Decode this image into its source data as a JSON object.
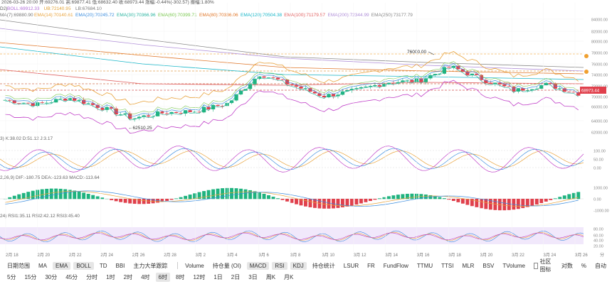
{
  "header": {
    "line1": "2026-03-26 20:00  开:69276.01  高:69877.41  低:68632.40  收:68973.44  涨幅:-0.44%(-302.57)  振幅:1.80%",
    "line2_prefix": "D2)",
    "boll": [
      "BOLL:69912.33",
      "UB:72140.95",
      "LB:67684.10"
    ],
    "ema_prefix": "MA(7):69880.90",
    "ema": [
      {
        "label": "EMA(14):70140.61",
        "color": "#e8a23a"
      },
      {
        "label": "EMA(20):70245.72",
        "color": "#3c8dde"
      },
      {
        "label": "EMA(30):70366.96",
        "color": "#2bb4a0"
      },
      {
        "label": "EMA(60):70399.71",
        "color": "#7ac74f"
      },
      {
        "label": "EMA(80):70336.06",
        "color": "#e0772a"
      },
      {
        "label": "EMA(120):70504.38",
        "color": "#19b6c8"
      },
      {
        "label": "EMA(100):71179.57",
        "color": "#e06060"
      },
      {
        "label": "EMA(200):72344.99",
        "color": "#b08fd8"
      },
      {
        "label": "EMA(250):73177.79",
        "color": "#888888"
      }
    ]
  },
  "price_axis": [
    "84000.00",
    "82000.00",
    "80000.00",
    "78000.00",
    "76000.00",
    "74000.00",
    "72000.00",
    "70000.00",
    "66000.00",
    "64000.00",
    "62000.00"
  ],
  "price_badge": "68973.44",
  "annotation_high": "76000.00",
  "annotation_low": "62510.25",
  "kdj": {
    "label": "3)  K:38.02  D:51.12  J:3.17",
    "axis": [
      "100.00",
      "50.00",
      "0.00"
    ]
  },
  "macd": {
    "label": "2,26,9)  DIF:-180.75  DEA:-123.63  MACD:-113.64",
    "axis": [
      "1000.00",
      "0.00",
      "-1000.00"
    ]
  },
  "rsi": {
    "label": "24)  RSI1:35.11  RSI2:42.12  RSI3:45.40",
    "axis": [
      "80.00",
      "60.00",
      "40.00",
      "20.00"
    ]
  },
  "date_axis": [
    "2月 18",
    "2月 20",
    "2月 22",
    "2月 24",
    "2月 26",
    "2月 28",
    "3月 2",
    "3月 4",
    "3月 6",
    "3月 8",
    "3月 10",
    "3月 12",
    "3月 14",
    "3月 16",
    "3月 18",
    "3月 20",
    "3月 22",
    "3月 24",
    "3月 26"
  ],
  "toolbar1": {
    "left": [
      "日期范围",
      "MA",
      "EMA",
      "BOLL",
      "TD",
      "BBI",
      "主力大单跟踪"
    ],
    "right": [
      "Volume",
      "持仓量 (OI)",
      "MACD",
      "RSI",
      "KDJ",
      "持仓统计",
      "LSUR",
      "FR",
      "FundFlow",
      "TTMU",
      "TTSI",
      "MLR",
      "BSV",
      "TVolume"
    ],
    "check_label": "社区图标",
    "tail": [
      "对数",
      "%",
      "自动"
    ]
  },
  "toolbar2": [
    "5分",
    "15分",
    "30分",
    "45分",
    "分时",
    "1时",
    "2时",
    "4时",
    "6时",
    "8时",
    "12时",
    "1日",
    "2日",
    "3日",
    "周K",
    "月K"
  ],
  "corner_label": "分",
  "chart_data": {
    "type": "candlestick",
    "title": "",
    "interval": "6时",
    "x": [
      "2月 18",
      "2月 20",
      "2月 22",
      "2月 24",
      "2月 26",
      "2月 28",
      "3月 2",
      "3月 4",
      "3月 6",
      "3月 8",
      "3月 10",
      "3月 12",
      "3月 14",
      "3月 16",
      "3月 18",
      "3月 20",
      "3月 22",
      "3月 24",
      "3月 26"
    ],
    "close": [
      67800,
      67000,
      68200,
      66500,
      64500,
      65500,
      65800,
      67200,
      72500,
      70500,
      68500,
      69500,
      71000,
      71300,
      73800,
      71500,
      69500,
      70600,
      68973
    ],
    "ylim": [
      62000,
      84000
    ],
    "last_price": 68973.44,
    "high_marker": 76000.0,
    "low_marker": 62510.25,
    "indicators": [
      "BOLL",
      "EMA",
      "KDJ",
      "MACD",
      "RSI"
    ]
  }
}
